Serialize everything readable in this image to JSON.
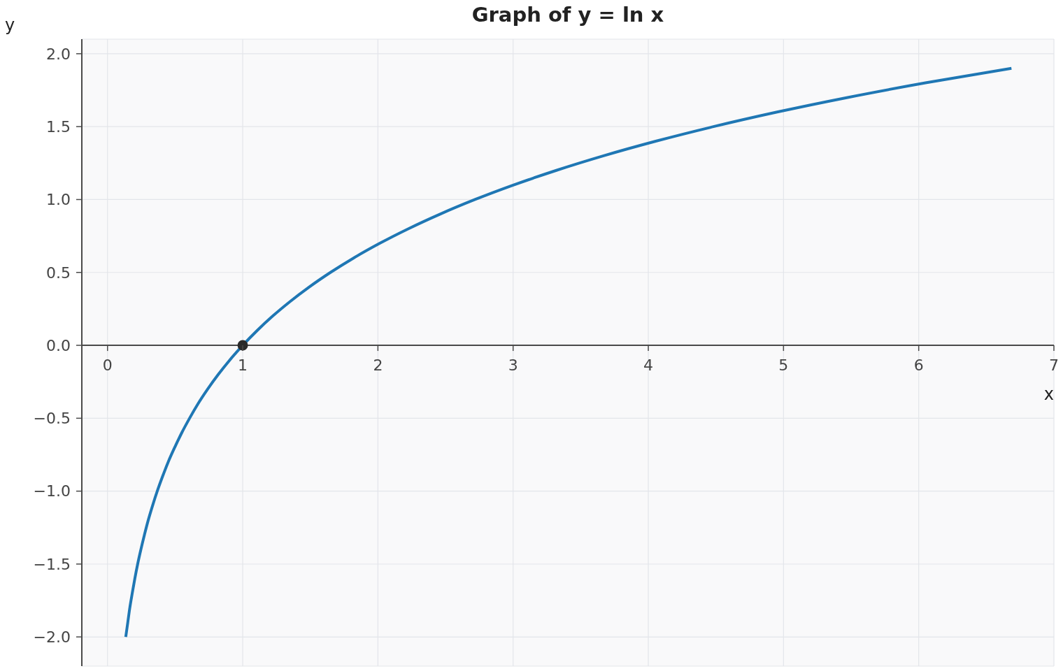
{
  "chart_data": {
    "type": "line",
    "title": "Graph of y = ln x",
    "xlabel": "x",
    "ylabel": "y",
    "xlim": [
      -0.19,
      7
    ],
    "ylim": [
      -2.2,
      2.1
    ],
    "xticks": [
      0,
      1,
      2,
      3,
      4,
      5,
      6,
      7
    ],
    "yticks": [
      {
        "value": -2,
        "label": "−2.0"
      },
      {
        "value": -1.5,
        "label": "−1.5"
      },
      {
        "value": -1,
        "label": "−1.0"
      },
      {
        "value": -0.5,
        "label": "−0.5"
      },
      {
        "value": 0,
        "label": "0.0"
      },
      {
        "value": 0.5,
        "label": "0.5"
      },
      {
        "value": 1,
        "label": "1.0"
      },
      {
        "value": 1.5,
        "label": "1.5"
      },
      {
        "value": 2,
        "label": "2.0"
      }
    ],
    "grid": true,
    "series": [
      {
        "color": "#1f77b4",
        "line_style": "solid",
        "x": [
          0.135,
          0.15,
          0.165,
          0.183,
          0.202,
          0.223,
          0.247,
          0.273,
          0.301,
          0.333,
          0.368,
          0.407,
          0.449,
          0.497,
          0.549,
          0.607,
          0.67,
          0.741,
          0.819,
          0.905,
          1,
          1.105,
          1.221,
          1.35,
          1.492,
          1.649,
          1.822,
          2.014,
          2.226,
          2.46,
          2.718,
          3.004,
          3.32,
          3.669,
          4.055,
          4.482,
          4.953,
          5.474,
          6.05,
          6.686
        ],
        "values": [
          -2.0,
          -1.9,
          -1.8,
          -1.7,
          -1.6,
          -1.5,
          -1.4,
          -1.3,
          -1.2,
          -1.1,
          -1.0,
          -0.9,
          -0.8,
          -0.7,
          -0.6,
          -0.5,
          -0.4,
          -0.3,
          -0.2,
          -0.1,
          0,
          0.1,
          0.2,
          0.3,
          0.4,
          0.5,
          0.6,
          0.7,
          0.8,
          0.9,
          1.0,
          1.1,
          1.2,
          1.3,
          1.4,
          1.5,
          1.6,
          1.7,
          1.8,
          1.9
        ]
      },
      {
        "type": "scatter",
        "color": "#2b2b2b",
        "marker": "circle",
        "x": [
          1
        ],
        "values": [
          0
        ]
      }
    ]
  }
}
